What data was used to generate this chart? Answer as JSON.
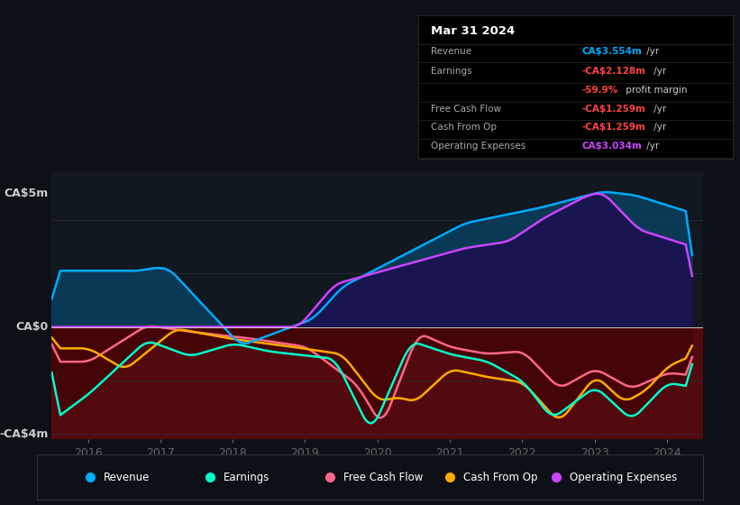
{
  "bg_color": "#0d1117",
  "plot_bg_color": "#111820",
  "title": "Mar 31 2024",
  "y_label_top": "CA$5m",
  "y_label_zero": "CA$0",
  "y_label_bottom": "-CA$4m",
  "ylim": [
    -4.2,
    5.8
  ],
  "xlim_start": 2015.5,
  "xlim_end": 2024.5,
  "x_ticks": [
    2016,
    2017,
    2018,
    2019,
    2020,
    2021,
    2022,
    2023,
    2024
  ],
  "revenue_color": "#00aaff",
  "earnings_color": "#00ffcc",
  "fcf_color": "#ff6688",
  "cashfromop_color": "#ffaa00",
  "opex_color": "#cc44ff",
  "revenue_fill": "#0a3d5c",
  "opex_fill": "#1a1050",
  "red_band": "#8b0000",
  "legend_items": [
    {
      "label": "Revenue",
      "color": "#00aaff"
    },
    {
      "label": "Earnings",
      "color": "#00ffcc"
    },
    {
      "label": "Free Cash Flow",
      "color": "#ff6688"
    },
    {
      "label": "Cash From Op",
      "color": "#ffaa00"
    },
    {
      "label": "Operating Expenses",
      "color": "#cc44ff"
    }
  ],
  "info_box_title": "Mar 31 2024",
  "info_rows": [
    {
      "label": "Revenue",
      "val": "CA$3.554m",
      "suffix": " /yr",
      "vcol": "#00aaff"
    },
    {
      "label": "Earnings",
      "val": "-CA$2.128m",
      "suffix": " /yr",
      "vcol": "#ff4444"
    },
    {
      "label": "",
      "val": "-59.9%",
      "suffix": " profit margin",
      "vcol": "#ff4444"
    },
    {
      "label": "Free Cash Flow",
      "val": "-CA$1.259m",
      "suffix": " /yr",
      "vcol": "#ff4444"
    },
    {
      "label": "Cash From Op",
      "val": "-CA$1.259m",
      "suffix": " /yr",
      "vcol": "#ff4444"
    },
    {
      "label": "Operating Expenses",
      "val": "CA$3.034m",
      "suffix": " /yr",
      "vcol": "#cc44ff"
    }
  ]
}
